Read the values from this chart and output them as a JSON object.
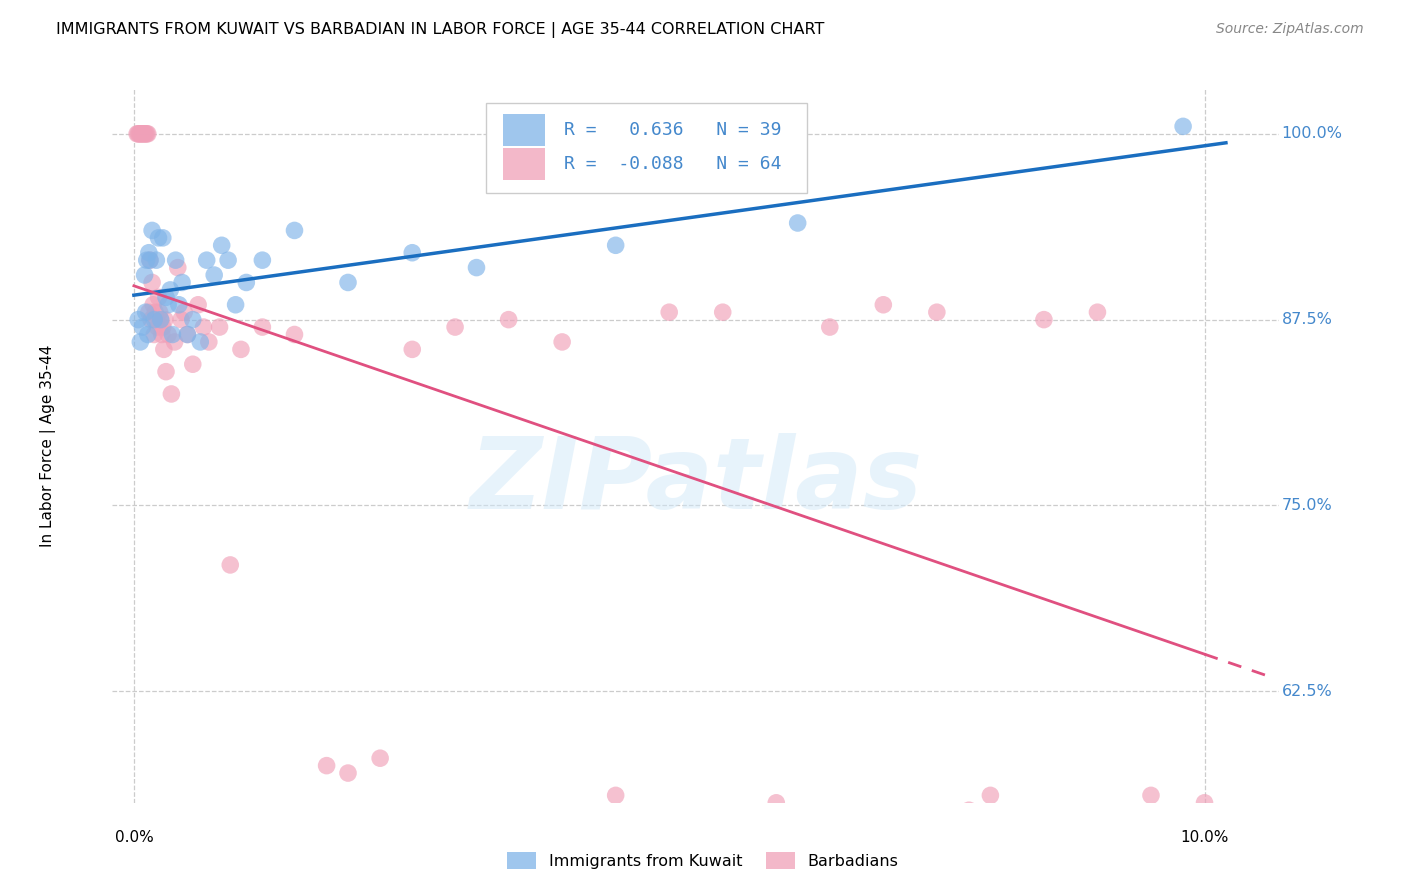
{
  "title": "IMMIGRANTS FROM KUWAIT VS BARBADIAN IN LABOR FORCE | AGE 35-44 CORRELATION CHART",
  "source": "Source: ZipAtlas.com",
  "ylabel": "In Labor Force | Age 35-44",
  "yticks": [
    62.5,
    75.0,
    87.5,
    100.0
  ],
  "ytick_labels": [
    "62.5%",
    "75.0%",
    "87.5%",
    "100.0%"
  ],
  "xlim_data": [
    0.0,
    10.0
  ],
  "ylim_data": [
    55.0,
    103.0
  ],
  "watermark_text": "ZIPatlas",
  "legend_kuwait": "Immigrants from Kuwait",
  "legend_barbadian": "Barbadians",
  "r_kuwait": "0.636",
  "n_kuwait": 39,
  "r_barbadian": "-0.088",
  "n_barbadian": 64,
  "kuwait_color": "#7fb3e8",
  "barbadian_color": "#f0a0b8",
  "kuwait_line_color": "#1a6ec0",
  "barbadian_line_color": "#e05080",
  "grid_color": "#cccccc",
  "yaxis_label_color": "#4488cc",
  "kuwait_x": [
    0.04,
    0.06,
    0.08,
    0.1,
    0.11,
    0.12,
    0.13,
    0.14,
    0.15,
    0.17,
    0.19,
    0.21,
    0.23,
    0.25,
    0.27,
    0.3,
    0.32,
    0.34,
    0.36,
    0.39,
    0.42,
    0.45,
    0.5,
    0.55,
    0.62,
    0.68,
    0.75,
    0.82,
    0.88,
    0.95,
    1.05,
    1.2,
    1.5,
    2.0,
    2.6,
    3.2,
    4.5,
    6.2,
    9.8
  ],
  "kuwait_y": [
    87.5,
    86.0,
    87.0,
    90.5,
    88.0,
    91.5,
    86.5,
    92.0,
    91.5,
    93.5,
    87.5,
    91.5,
    93.0,
    87.5,
    93.0,
    89.0,
    88.5,
    89.5,
    86.5,
    91.5,
    88.5,
    90.0,
    86.5,
    87.5,
    86.0,
    91.5,
    90.5,
    92.5,
    91.5,
    88.5,
    90.0,
    91.5,
    93.5,
    90.0,
    92.0,
    91.0,
    92.5,
    94.0,
    100.5
  ],
  "barbadian_x": [
    0.03,
    0.04,
    0.05,
    0.06,
    0.07,
    0.08,
    0.09,
    0.1,
    0.11,
    0.12,
    0.13,
    0.14,
    0.15,
    0.16,
    0.17,
    0.18,
    0.19,
    0.2,
    0.21,
    0.22,
    0.23,
    0.24,
    0.25,
    0.26,
    0.27,
    0.28,
    0.29,
    0.3,
    0.32,
    0.35,
    0.38,
    0.41,
    0.44,
    0.47,
    0.5,
    0.55,
    0.6,
    0.65,
    0.7,
    0.8,
    0.9,
    1.0,
    1.2,
    1.5,
    1.8,
    2.0,
    2.3,
    2.6,
    3.0,
    3.5,
    4.0,
    4.5,
    5.0,
    5.5,
    6.0,
    6.5,
    7.0,
    7.5,
    8.0,
    8.5,
    9.0,
    9.5,
    10.0,
    7.8
  ],
  "barbadian_y": [
    100.0,
    100.0,
    100.0,
    100.0,
    100.0,
    100.0,
    100.0,
    100.0,
    100.0,
    100.0,
    100.0,
    88.0,
    91.5,
    87.5,
    90.0,
    88.5,
    86.5,
    88.0,
    87.5,
    87.0,
    89.0,
    88.0,
    87.5,
    86.5,
    87.0,
    85.5,
    87.5,
    84.0,
    86.5,
    82.5,
    86.0,
    91.0,
    87.5,
    88.0,
    86.5,
    84.5,
    88.5,
    87.0,
    86.0,
    87.0,
    71.0,
    85.5,
    87.0,
    86.5,
    57.5,
    57.0,
    58.0,
    85.5,
    87.0,
    87.5,
    86.0,
    55.5,
    88.0,
    88.0,
    55.0,
    87.0,
    88.5,
    88.0,
    55.5,
    87.5,
    88.0,
    55.5,
    55.0,
    54.5
  ]
}
